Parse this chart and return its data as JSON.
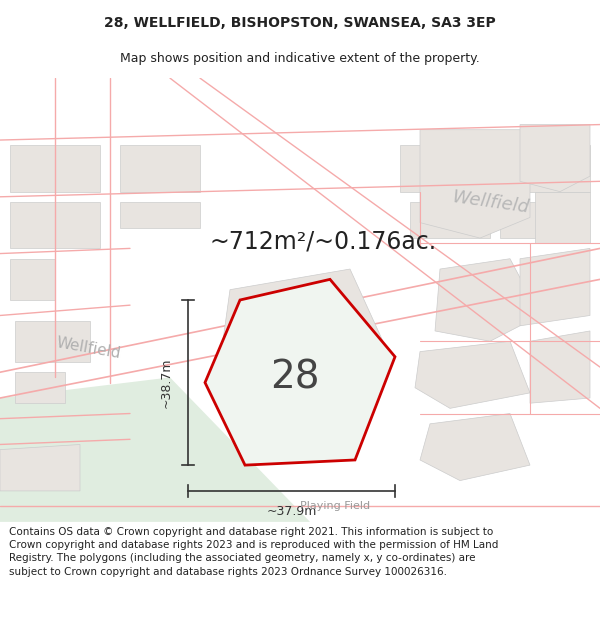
{
  "title_line1": "28, WELLFIELD, BISHOPSTON, SWANSEA, SA3 3EP",
  "title_line2": "Map shows position and indicative extent of the property.",
  "area_text": "~712m²/~0.176ac.",
  "number_label": "28",
  "dim_height": "~38.7m",
  "dim_width": "~37.9m",
  "playing_field_label": "Playing Field",
  "wellfield_label_mid": "Wellfield",
  "wellfield_label_ur": "Wellfield",
  "footer_text": "Contains OS data © Crown copyright and database right 2021. This information is subject to Crown copyright and database rights 2023 and is reproduced with the permission of HM Land Registry. The polygons (including the associated geometry, namely x, y co-ordinates) are subject to Crown copyright and database rights 2023 Ordnance Survey 100026316.",
  "map_bg": "#ffffff",
  "road_line_color": "#f5aaaa",
  "building_fill": "#e8e4e0",
  "building_edge": "#cccccc",
  "property_fill": "#f0f5f0",
  "property_edge": "#cc0000",
  "green_fill": "#e0ede0",
  "text_color": "#222222",
  "road_label_color": "#aaaaaa",
  "dim_color": "#333333",
  "title_fontsize": 10,
  "subtitle_fontsize": 9,
  "footer_fontsize": 7.5,
  "area_fontsize": 17,
  "num_fontsize": 28,
  "dim_fontsize": 9,
  "road_label_fontsize": 11,
  "playing_field_fontsize": 8
}
